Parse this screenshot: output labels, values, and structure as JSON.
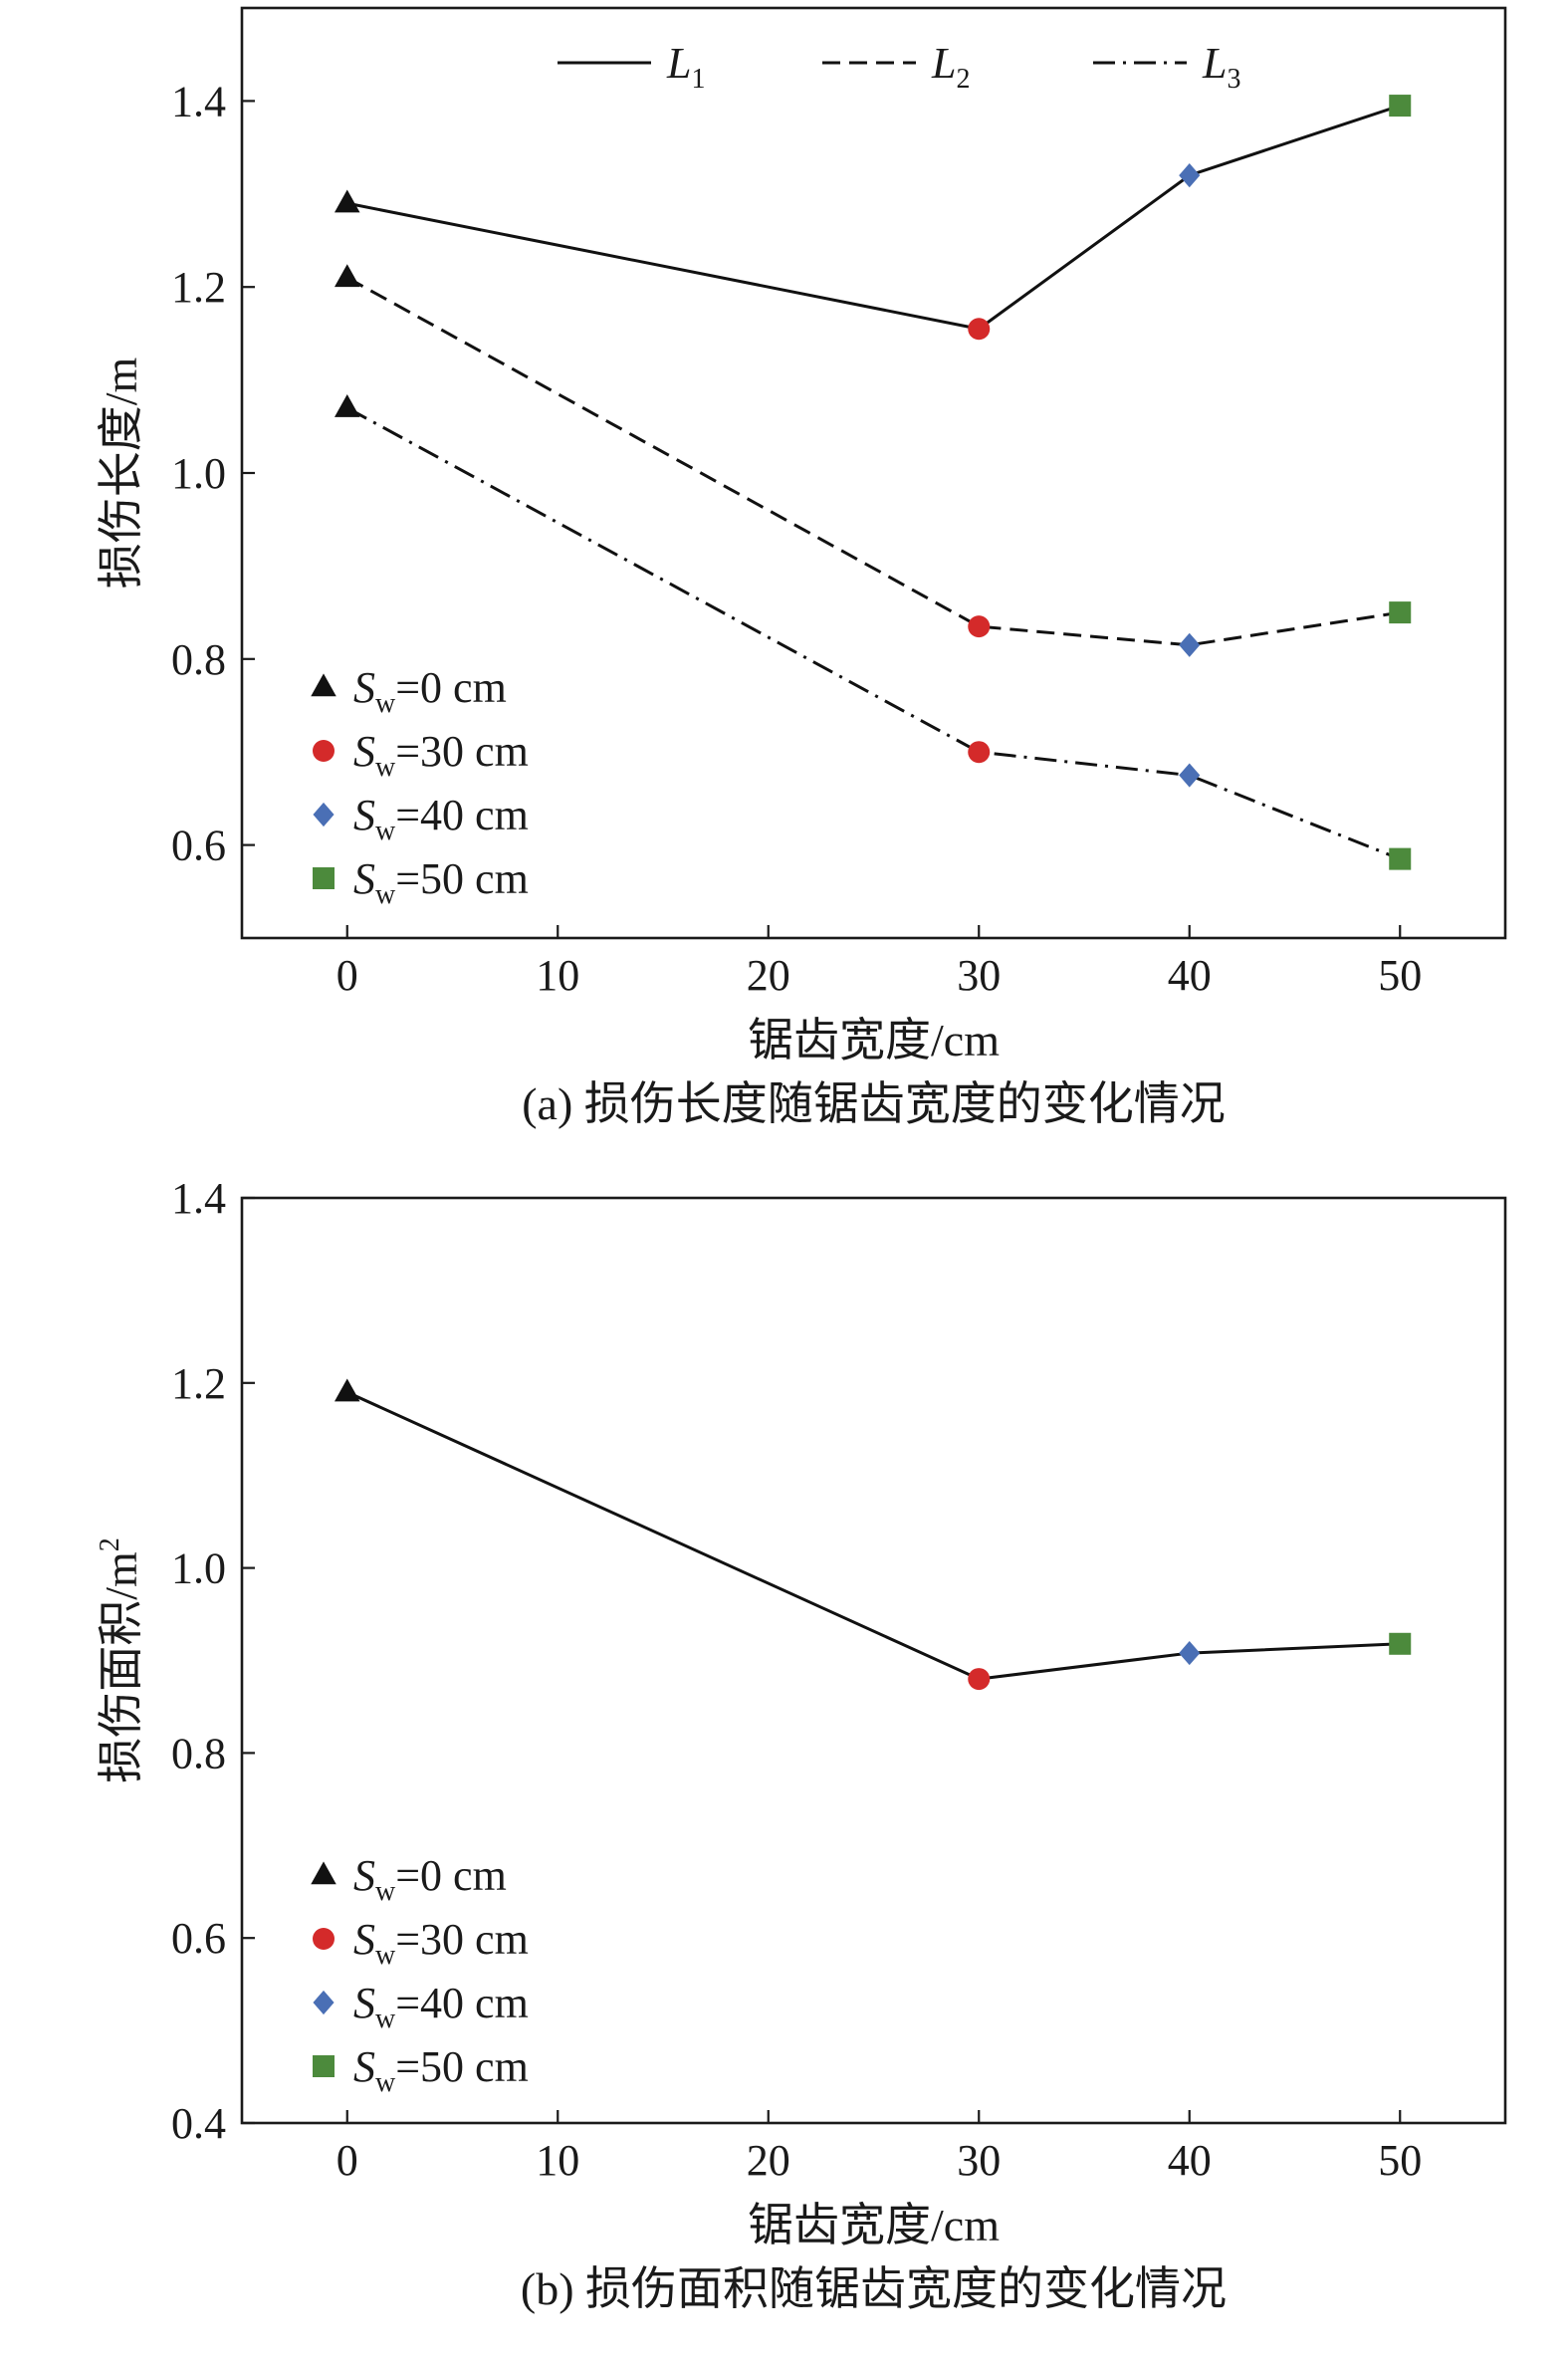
{
  "chart_data": [
    {
      "type": "line",
      "caption": "(a) 损伤长度随锯齿宽度的变化情况",
      "xlabel": "锯齿宽度/cm",
      "ylabel": "损伤长度/m",
      "xlim": [
        -5,
        55
      ],
      "ylim": [
        0.5,
        1.5
      ],
      "xticks": [
        "0",
        "10",
        "20",
        "30",
        "40",
        "50"
      ],
      "yticks": [
        "0.6",
        "0.8",
        "1.0",
        "1.2",
        "1.4"
      ],
      "x": [
        0,
        30,
        40,
        50
      ],
      "series": [
        {
          "name": "L",
          "subscript": "1",
          "dash": "solid",
          "values": [
            1.29,
            1.155,
            1.32,
            1.395
          ]
        },
        {
          "name": "L",
          "subscript": "2",
          "dash": "dashed",
          "values": [
            1.21,
            0.835,
            0.815,
            0.85
          ]
        },
        {
          "name": "L",
          "subscript": "3",
          "dash": "dashdot",
          "values": [
            1.07,
            0.7,
            0.675,
            0.585
          ]
        }
      ],
      "line_legend_position": "top",
      "marker_legend_position": "bottom-left",
      "grid": false
    },
    {
      "type": "line",
      "caption": "(b) 损伤面积随锯齿宽度的变化情况",
      "xlabel": "锯齿宽度/cm",
      "ylabel": "损伤面积/m",
      "ylabel_superscript": "2",
      "xlim": [
        -5,
        55
      ],
      "ylim": [
        0.4,
        1.4
      ],
      "xticks": [
        "0",
        "10",
        "20",
        "30",
        "40",
        "50"
      ],
      "yticks": [
        "0.4",
        "0.6",
        "0.8",
        "1.0",
        "1.2",
        "1.4"
      ],
      "x": [
        0,
        30,
        40,
        50
      ],
      "series": [
        {
          "name": "",
          "dash": "solid",
          "values": [
            1.19,
            0.88,
            0.908,
            0.918
          ]
        }
      ],
      "marker_legend_position": "bottom-left",
      "grid": false
    }
  ],
  "markers": [
    {
      "shape": "triangle",
      "color": "#111111",
      "label_var": "S",
      "label_sub": "w",
      "label_rest": "=0 cm"
    },
    {
      "shape": "circle",
      "color": "#d42a2a",
      "label_var": "S",
      "label_sub": "w",
      "label_rest": "=30 cm"
    },
    {
      "shape": "diamond",
      "color": "#4a6fb5",
      "label_var": "S",
      "label_sub": "w",
      "label_rest": "=40 cm"
    },
    {
      "shape": "square",
      "color": "#4c8a3c",
      "label_var": "S",
      "label_sub": "w",
      "label_rest": "=50 cm"
    }
  ]
}
